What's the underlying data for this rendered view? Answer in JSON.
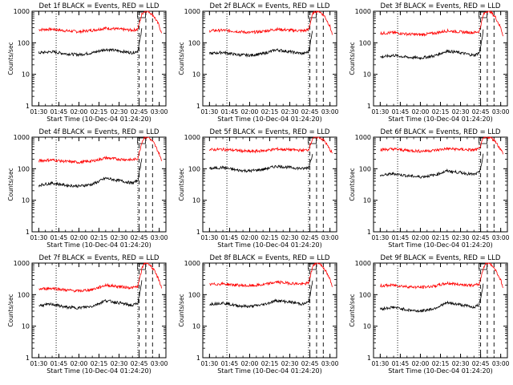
{
  "chart_data": [
    {
      "type": "line",
      "title": "Det 1f BLACK = Events, RED = LLD",
      "xlabel": "Start Time (10-Dec-04 01:24:20)",
      "ylabel": "Counts/sec",
      "yscale": "log",
      "ylim": [
        1,
        1000
      ],
      "xlim": [
        "01:25",
        "03:05"
      ],
      "x_tick_labels": [
        "01:30",
        "01:45",
        "02:00",
        "02:15",
        "02:30",
        "02:45",
        "03:00"
      ],
      "y_tick_labels": [
        "1",
        "10",
        "100",
        "1000"
      ],
      "grid": false,
      "series": [
        {
          "color": "#ff0000",
          "x": [
            "01:30",
            "01:40",
            "01:50",
            "02:00",
            "02:10",
            "02:20",
            "02:30",
            "02:40",
            "02:44",
            "02:47",
            "02:49",
            "02:52",
            "02:56",
            "03:00",
            "03:02"
          ],
          "values": [
            260,
            270,
            240,
            225,
            250,
            290,
            270,
            250,
            270,
            800,
            1000,
            1000,
            700,
            350,
            180
          ]
        },
        {
          "color": "#000000",
          "x": [
            "01:30",
            "01:40",
            "01:50",
            "02:00",
            "02:10",
            "02:20",
            "02:30",
            "02:40",
            "02:44",
            "02:46",
            "02:47"
          ],
          "values": [
            48,
            52,
            45,
            42,
            48,
            62,
            55,
            48,
            55,
            150,
            280
          ]
        }
      ],
      "vlines_dotted": [
        "01:43",
        "02:44"
      ],
      "vlines_dashed": [
        "02:45",
        "02:50",
        "02:55"
      ]
    },
    {
      "type": "line",
      "title": "Det 2f BLACK = Events, RED = LLD",
      "xlabel": "Start Time (10-Dec-04 01:24:20)",
      "ylabel": "Counts/sec",
      "yscale": "log",
      "ylim": [
        1,
        1000
      ],
      "xlim": [
        "01:25",
        "03:05"
      ],
      "x_tick_labels": [
        "01:30",
        "01:45",
        "02:00",
        "02:15",
        "02:30",
        "02:45",
        "03:00"
      ],
      "y_tick_labels": [
        "1",
        "10",
        "100",
        "1000"
      ],
      "grid": false,
      "series": [
        {
          "color": "#ff0000",
          "x": [
            "01:30",
            "01:40",
            "01:50",
            "02:00",
            "02:10",
            "02:20",
            "02:30",
            "02:40",
            "02:44",
            "02:47",
            "02:49",
            "02:52",
            "02:56",
            "03:00",
            "03:02"
          ],
          "values": [
            240,
            250,
            230,
            210,
            230,
            270,
            250,
            240,
            260,
            800,
            1000,
            1000,
            700,
            330,
            170
          ]
        },
        {
          "color": "#000000",
          "x": [
            "01:30",
            "01:40",
            "01:50",
            "02:00",
            "02:10",
            "02:20",
            "02:30",
            "02:40",
            "02:44",
            "02:46",
            "02:47"
          ],
          "values": [
            45,
            50,
            42,
            40,
            45,
            60,
            52,
            45,
            52,
            140,
            260
          ]
        }
      ],
      "vlines_dotted": [
        "01:43",
        "02:44"
      ],
      "vlines_dashed": [
        "02:45",
        "02:50",
        "02:55"
      ]
    },
    {
      "type": "line",
      "title": "Det 3f BLACK = Events, RED = LLD",
      "xlabel": "Start Time (10-Dec-04 01:24:20)",
      "ylabel": "Counts/sec",
      "yscale": "log",
      "ylim": [
        1,
        1000
      ],
      "xlim": [
        "01:25",
        "03:05"
      ],
      "x_tick_labels": [
        "01:30",
        "01:45",
        "02:00",
        "02:15",
        "02:30",
        "02:45",
        "03:00"
      ],
      "y_tick_labels": [
        "1",
        "10",
        "100",
        "1000"
      ],
      "grid": false,
      "series": [
        {
          "color": "#ff0000",
          "x": [
            "01:30",
            "01:40",
            "01:50",
            "02:00",
            "02:10",
            "02:20",
            "02:30",
            "02:40",
            "02:44",
            "02:47",
            "02:49",
            "02:52",
            "02:56",
            "03:00",
            "03:02"
          ],
          "values": [
            200,
            210,
            190,
            180,
            200,
            240,
            220,
            210,
            230,
            750,
            1000,
            1000,
            650,
            300,
            160
          ]
        },
        {
          "color": "#000000",
          "x": [
            "01:30",
            "01:40",
            "01:50",
            "02:00",
            "02:10",
            "02:20",
            "02:30",
            "02:40",
            "02:44",
            "02:46",
            "02:47"
          ],
          "values": [
            35,
            40,
            35,
            33,
            38,
            55,
            48,
            40,
            48,
            130,
            240
          ]
        }
      ],
      "vlines_dotted": [
        "01:43",
        "02:44"
      ],
      "vlines_dashed": [
        "02:45",
        "02:50",
        "02:55"
      ]
    },
    {
      "type": "line",
      "title": "Det 4f BLACK = Events, RED = LLD",
      "xlabel": "Start Time (10-Dec-04 01:24:20)",
      "ylabel": "Counts/sec",
      "yscale": "log",
      "ylim": [
        1,
        1000
      ],
      "xlim": [
        "01:25",
        "03:05"
      ],
      "x_tick_labels": [
        "01:30",
        "01:45",
        "02:00",
        "02:15",
        "02:30",
        "02:45",
        "03:00"
      ],
      "y_tick_labels": [
        "1",
        "10",
        "100",
        "1000"
      ],
      "grid": false,
      "series": [
        {
          "color": "#ff0000",
          "x": [
            "01:30",
            "01:40",
            "01:50",
            "02:00",
            "02:10",
            "02:20",
            "02:30",
            "02:40",
            "02:44",
            "02:47",
            "02:49",
            "02:52",
            "02:56",
            "03:00",
            "03:02"
          ],
          "values": [
            180,
            190,
            170,
            160,
            175,
            220,
            200,
            190,
            210,
            700,
            1000,
            1000,
            650,
            300,
            160
          ]
        },
        {
          "color": "#000000",
          "x": [
            "01:30",
            "01:40",
            "01:50",
            "02:00",
            "02:10",
            "02:20",
            "02:30",
            "02:40",
            "02:44",
            "02:46",
            "02:47"
          ],
          "values": [
            30,
            35,
            30,
            28,
            32,
            50,
            42,
            35,
            42,
            120,
            230
          ]
        }
      ],
      "vlines_dotted": [
        "01:43",
        "02:44"
      ],
      "vlines_dashed": [
        "02:45",
        "02:50",
        "02:55"
      ]
    },
    {
      "type": "line",
      "title": "Det 5f BLACK = Events, RED = LLD",
      "xlabel": "Start Time (10-Dec-04 01:24:20)",
      "ylabel": "Counts/sec",
      "yscale": "log",
      "ylim": [
        1,
        1000
      ],
      "xlim": [
        "01:25",
        "03:05"
      ],
      "x_tick_labels": [
        "01:30",
        "01:45",
        "02:00",
        "02:15",
        "02:30",
        "02:45",
        "03:00"
      ],
      "y_tick_labels": [
        "1",
        "10",
        "100",
        "1000"
      ],
      "grid": false,
      "series": [
        {
          "color": "#ff0000",
          "x": [
            "01:30",
            "01:40",
            "01:50",
            "02:00",
            "02:10",
            "02:20",
            "02:30",
            "02:40",
            "02:44",
            "02:47",
            "02:49",
            "02:52",
            "02:56",
            "03:00",
            "03:02"
          ],
          "values": [
            400,
            410,
            380,
            350,
            370,
            420,
            400,
            380,
            400,
            900,
            1000,
            1000,
            750,
            400,
            300
          ]
        },
        {
          "color": "#000000",
          "x": [
            "01:30",
            "01:40",
            "01:50",
            "02:00",
            "02:10",
            "02:20",
            "02:30",
            "02:40",
            "02:44",
            "02:46",
            "02:47"
          ],
          "values": [
            100,
            110,
            90,
            85,
            95,
            120,
            110,
            100,
            110,
            200,
            320
          ]
        }
      ],
      "vlines_dotted": [
        "01:43",
        "02:44"
      ],
      "vlines_dashed": [
        "02:45",
        "02:50",
        "02:55"
      ]
    },
    {
      "type": "line",
      "title": "Det 6f BLACK = Events, RED = LLD",
      "xlabel": "Start Time (10-Dec-04 01:24:20)",
      "ylabel": "Counts/sec",
      "yscale": "log",
      "ylim": [
        1,
        1000
      ],
      "xlim": [
        "01:25",
        "03:05"
      ],
      "x_tick_labels": [
        "01:30",
        "01:45",
        "02:00",
        "02:15",
        "02:30",
        "02:45",
        "03:00"
      ],
      "y_tick_labels": [
        "1",
        "10",
        "100",
        "1000"
      ],
      "grid": false,
      "series": [
        {
          "color": "#ff0000",
          "x": [
            "01:30",
            "01:40",
            "01:50",
            "02:00",
            "02:10",
            "02:20",
            "02:30",
            "02:40",
            "02:44",
            "02:47",
            "02:49",
            "02:52",
            "02:56",
            "03:00",
            "03:02"
          ],
          "values": [
            400,
            420,
            380,
            360,
            380,
            430,
            410,
            390,
            420,
            900,
            1000,
            1000,
            750,
            400,
            300
          ]
        },
        {
          "color": "#000000",
          "x": [
            "01:30",
            "01:40",
            "01:50",
            "02:00",
            "02:10",
            "02:20",
            "02:30",
            "02:40",
            "02:44",
            "02:46",
            "02:47"
          ],
          "values": [
            60,
            70,
            60,
            55,
            62,
            85,
            75,
            65,
            75,
            160,
            280
          ]
        }
      ],
      "vlines_dotted": [
        "01:43",
        "02:44"
      ],
      "vlines_dashed": [
        "02:45",
        "02:50",
        "02:55"
      ]
    },
    {
      "type": "line",
      "title": "Det 7f BLACK = Events, RED = LLD",
      "xlabel": "Start Time (10-Dec-04 01:24:20)",
      "ylabel": "Counts/sec",
      "yscale": "log",
      "ylim": [
        1,
        1000
      ],
      "xlim": [
        "01:25",
        "03:05"
      ],
      "x_tick_labels": [
        "01:30",
        "01:45",
        "02:00",
        "02:15",
        "02:30",
        "02:45",
        "03:00"
      ],
      "y_tick_labels": [
        "1",
        "10",
        "100",
        "1000"
      ],
      "grid": false,
      "series": [
        {
          "color": "#ff0000",
          "x": [
            "01:30",
            "01:40",
            "01:50",
            "02:00",
            "02:10",
            "02:20",
            "02:30",
            "02:40",
            "02:44",
            "02:47",
            "02:49",
            "02:52",
            "02:56",
            "03:00",
            "03:02"
          ],
          "values": [
            150,
            160,
            140,
            130,
            145,
            200,
            180,
            165,
            180,
            650,
            1000,
            1000,
            600,
            280,
            150
          ]
        },
        {
          "color": "#000000",
          "x": [
            "01:30",
            "01:40",
            "01:50",
            "02:00",
            "02:10",
            "02:20",
            "02:30",
            "02:40",
            "02:44",
            "02:46",
            "02:47"
          ],
          "values": [
            45,
            50,
            40,
            38,
            43,
            65,
            55,
            45,
            55,
            140,
            260
          ]
        }
      ],
      "vlines_dotted": [
        "01:43",
        "02:44"
      ],
      "vlines_dashed": [
        "02:45",
        "02:50",
        "02:55"
      ]
    },
    {
      "type": "line",
      "title": "Det 8f BLACK = Events, RED = LLD",
      "xlabel": "Start Time (10-Dec-04 01:24:20)",
      "ylabel": "Counts/sec",
      "yscale": "log",
      "ylim": [
        1,
        1000
      ],
      "xlim": [
        "01:25",
        "03:05"
      ],
      "x_tick_labels": [
        "01:30",
        "01:45",
        "02:00",
        "02:15",
        "02:30",
        "02:45",
        "03:00"
      ],
      "y_tick_labels": [
        "1",
        "10",
        "100",
        "1000"
      ],
      "grid": false,
      "series": [
        {
          "color": "#ff0000",
          "x": [
            "01:30",
            "01:40",
            "01:50",
            "02:00",
            "02:10",
            "02:20",
            "02:30",
            "02:40",
            "02:44",
            "02:47",
            "02:49",
            "02:52",
            "02:56",
            "03:00",
            "03:02"
          ],
          "values": [
            210,
            220,
            200,
            190,
            205,
            250,
            230,
            215,
            235,
            750,
            1000,
            1000,
            650,
            300,
            160
          ]
        },
        {
          "color": "#000000",
          "x": [
            "01:30",
            "01:40",
            "01:50",
            "02:00",
            "02:10",
            "02:20",
            "02:30",
            "02:40",
            "02:44",
            "02:46",
            "02:47"
          ],
          "values": [
            50,
            55,
            45,
            42,
            48,
            65,
            58,
            50,
            58,
            145,
            270
          ]
        }
      ],
      "vlines_dotted": [
        "01:43",
        "02:44"
      ],
      "vlines_dashed": [
        "02:45",
        "02:50",
        "02:55"
      ]
    },
    {
      "type": "line",
      "title": "Det 9f BLACK = Events, RED = LLD",
      "xlabel": "Start Time (10-Dec-04 01:24:20)",
      "ylabel": "Counts/sec",
      "yscale": "log",
      "ylim": [
        1,
        1000
      ],
      "xlim": [
        "01:25",
        "03:05"
      ],
      "x_tick_labels": [
        "01:30",
        "01:45",
        "02:00",
        "02:15",
        "02:30",
        "02:45",
        "03:00"
      ],
      "y_tick_labels": [
        "1",
        "10",
        "100",
        "1000"
      ],
      "grid": false,
      "series": [
        {
          "color": "#ff0000",
          "x": [
            "01:30",
            "01:40",
            "01:50",
            "02:00",
            "02:10",
            "02:20",
            "02:30",
            "02:40",
            "02:44",
            "02:47",
            "02:49",
            "02:52",
            "02:56",
            "03:00",
            "03:02"
          ],
          "values": [
            190,
            200,
            180,
            170,
            185,
            230,
            210,
            195,
            215,
            700,
            1000,
            1000,
            620,
            290,
            150
          ]
        },
        {
          "color": "#000000",
          "x": [
            "01:30",
            "01:40",
            "01:50",
            "02:00",
            "02:10",
            "02:20",
            "02:30",
            "02:40",
            "02:44",
            "02:46",
            "02:47"
          ],
          "values": [
            35,
            40,
            33,
            30,
            36,
            55,
            48,
            40,
            48,
            130,
            240
          ]
        }
      ],
      "vlines_dotted": [
        "01:43",
        "02:44"
      ],
      "vlines_dashed": [
        "02:45",
        "02:50",
        "02:55"
      ]
    }
  ]
}
